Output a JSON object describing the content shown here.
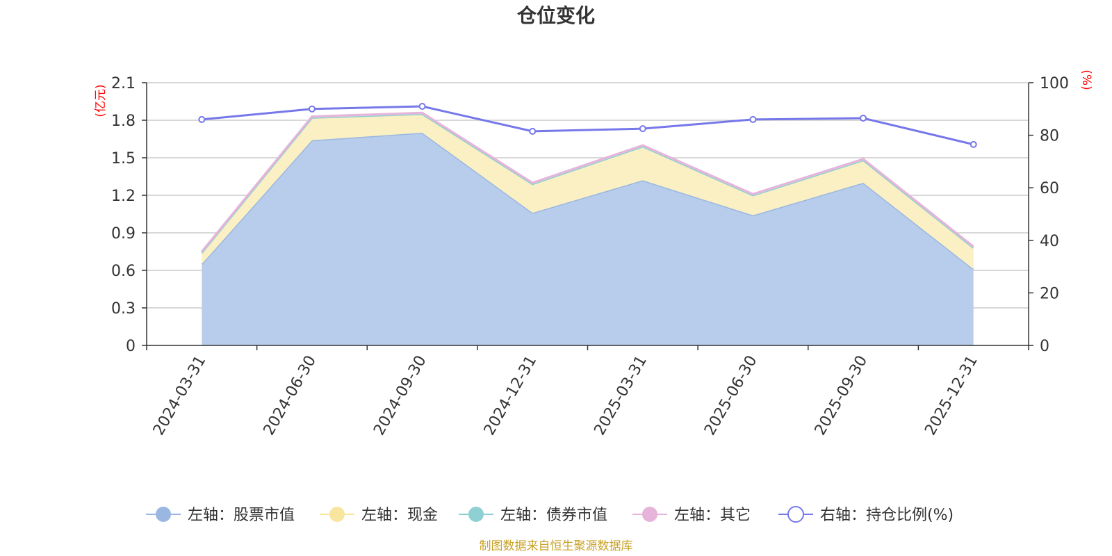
{
  "chart_data": {
    "type": "area",
    "title": "仓位变化",
    "categories": [
      "2024-03-31",
      "2024-06-30",
      "2024-09-30",
      "2024-12-31",
      "2025-03-31",
      "2025-06-30",
      "2025-09-30",
      "2025-12-31"
    ],
    "left_axis": {
      "unit_label": "(亿元)",
      "ylim": [
        0,
        2.1
      ],
      "ticks": [
        "0",
        "0.3",
        "0.6",
        "0.9",
        "1.2",
        "1.5",
        "1.8",
        "2.1"
      ]
    },
    "right_axis": {
      "unit_label": "(%)",
      "ylim": [
        0,
        100
      ],
      "ticks": [
        "0",
        "20",
        "40",
        "60",
        "80",
        "100"
      ]
    },
    "series": [
      {
        "name": "左轴：股票市值",
        "axis": "left",
        "stack": true,
        "color": "#9ab7e2",
        "fill": "#b8cdeb",
        "values": [
          0.65,
          1.64,
          1.7,
          1.06,
          1.32,
          1.04,
          1.3,
          0.61
        ]
      },
      {
        "name": "左轴：现金",
        "axis": "left",
        "stack": true,
        "color": "#f7e5a0",
        "fill": "#faf0c3",
        "values": [
          0.09,
          0.18,
          0.15,
          0.23,
          0.27,
          0.16,
          0.18,
          0.17
        ]
      },
      {
        "name": "左轴：债券市值",
        "axis": "left",
        "stack": true,
        "color": "#8fd0d3",
        "fill": "#bfe6e7",
        "values": [
          0,
          0,
          0,
          0,
          0,
          0,
          0,
          0
        ]
      },
      {
        "name": "左轴：其它",
        "axis": "left",
        "stack": true,
        "color": "#e6b4da",
        "fill": "#f1d6ec",
        "values": [
          0.01,
          0.01,
          0.01,
          0.01,
          0.01,
          0.01,
          0.01,
          0.01
        ]
      },
      {
        "name": "右轴：持仓比例(%)",
        "axis": "right",
        "stack": false,
        "color": "#7678ea",
        "values": [
          86.0,
          90.0,
          91.0,
          81.5,
          82.5,
          86.0,
          86.5,
          76.5
        ]
      }
    ],
    "legend_position": "bottom",
    "grid": true
  },
  "source_note": "制图数据来自恒生聚源数据库"
}
